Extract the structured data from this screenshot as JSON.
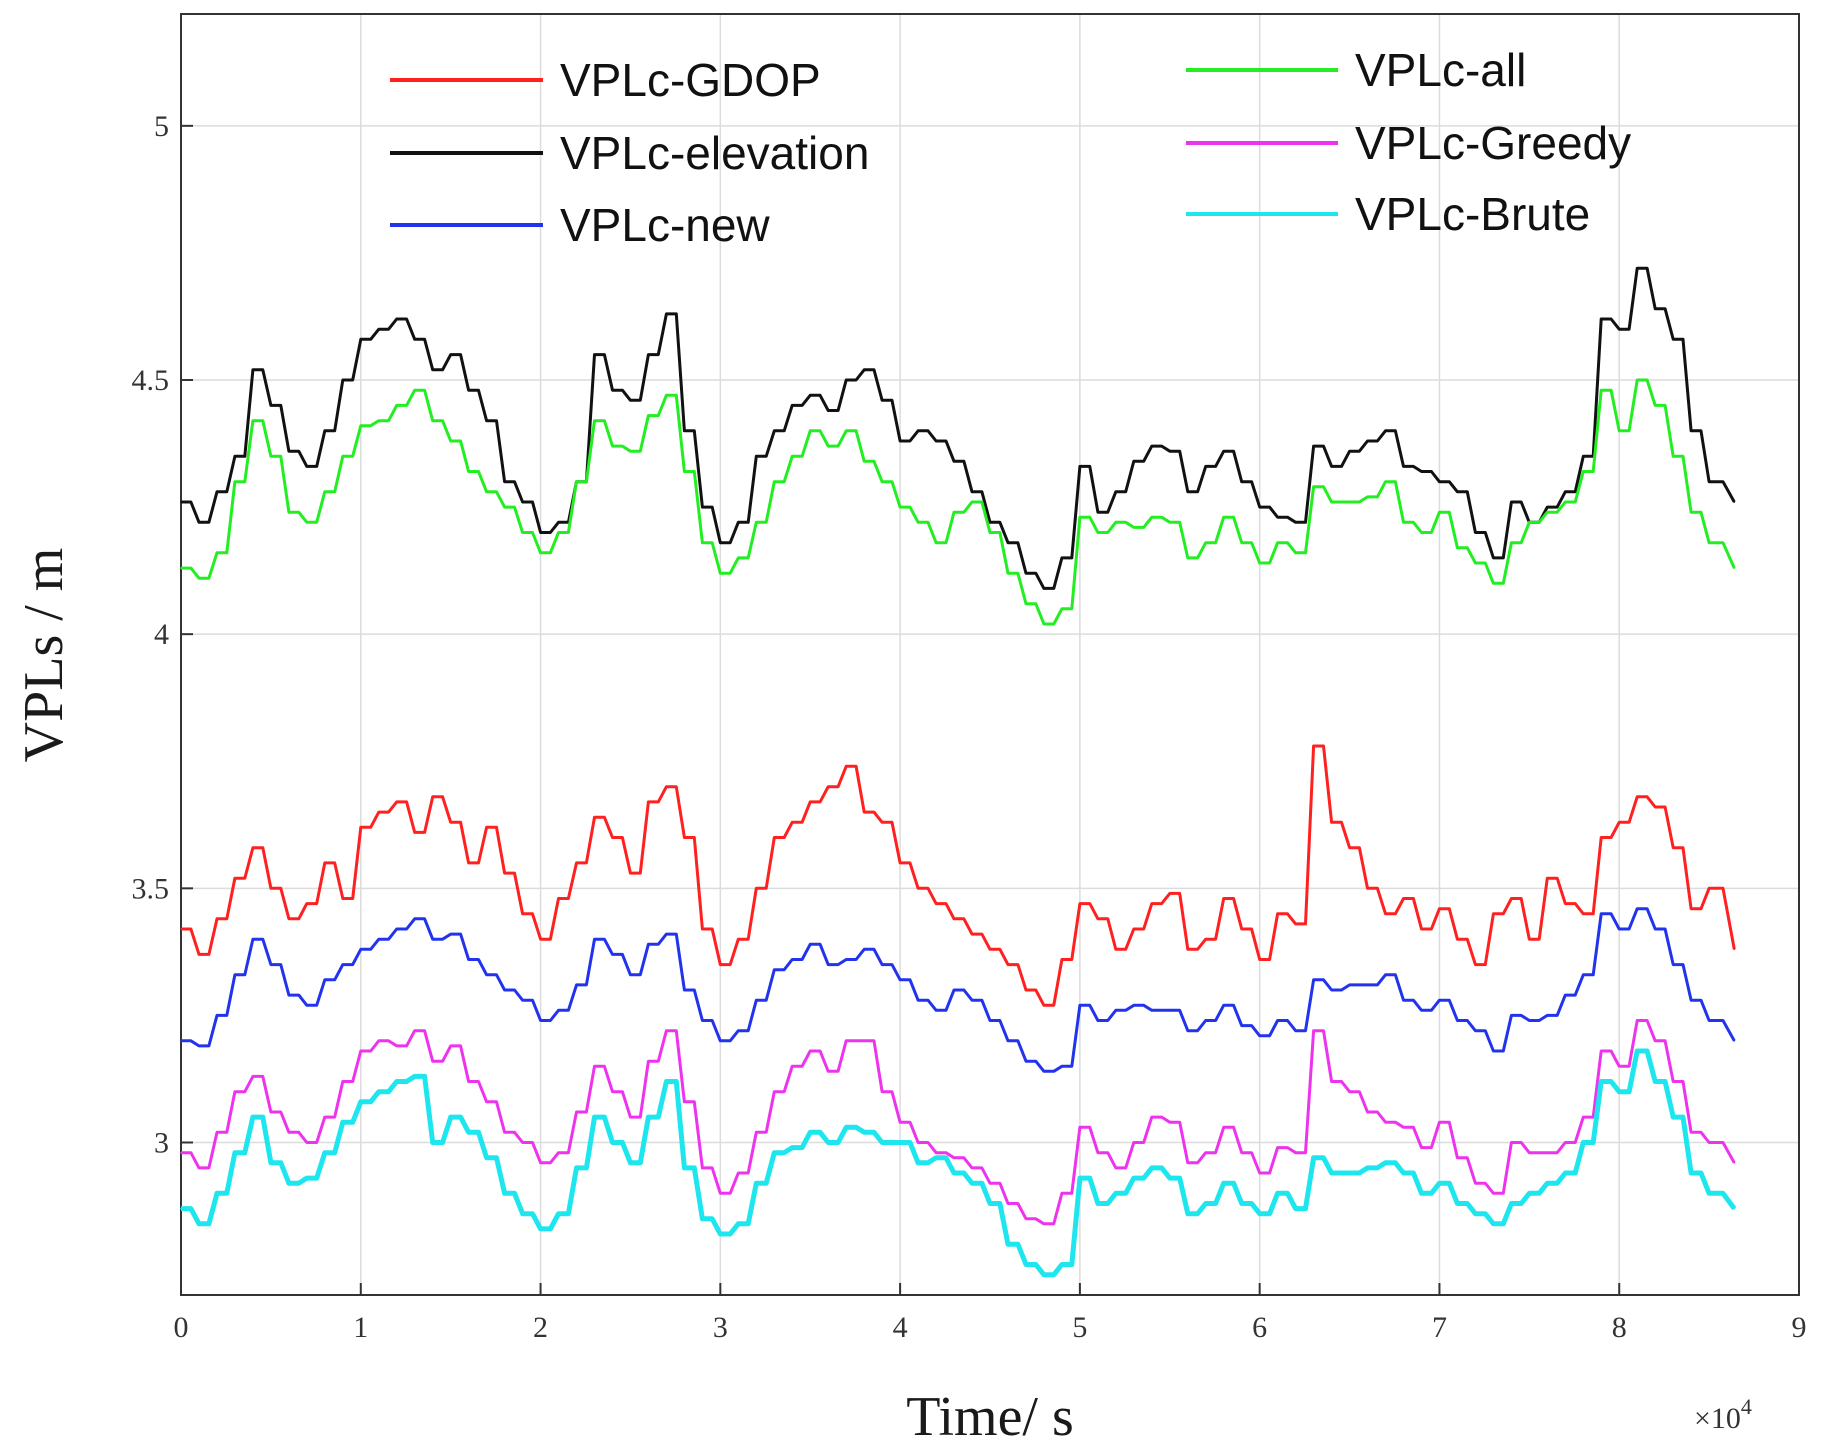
{
  "chart_data": {
    "type": "line",
    "xlabel": "Time/ s",
    "ylabel": "VPLs / m",
    "x_exponent_label": "×10",
    "x_exponent_power": "4",
    "xlim": [
      0,
      9
    ],
    "ylim": [
      2.7,
      5.22
    ],
    "xticks": [
      0,
      1,
      2,
      3,
      4,
      5,
      6,
      7,
      8,
      9
    ],
    "xtick_labels": [
      "0",
      "1",
      "2",
      "3",
      "4",
      "5",
      "6",
      "7",
      "8",
      "9"
    ],
    "yticks": [
      3,
      3.5,
      4,
      4.5,
      5
    ],
    "ytick_labels": [
      "3",
      "3.5",
      "4",
      "4.5",
      "5"
    ],
    "grid": true,
    "legend_position": "top",
    "x": [
      0.0,
      0.1,
      0.2,
      0.3,
      0.4,
      0.5,
      0.6,
      0.7,
      0.8,
      0.9,
      1.0,
      1.1,
      1.2,
      1.3,
      1.4,
      1.5,
      1.6,
      1.7,
      1.8,
      1.9,
      2.0,
      2.1,
      2.2,
      2.3,
      2.4,
      2.5,
      2.6,
      2.7,
      2.8,
      2.9,
      3.0,
      3.1,
      3.2,
      3.3,
      3.4,
      3.5,
      3.6,
      3.7,
      3.8,
      3.9,
      4.0,
      4.1,
      4.2,
      4.3,
      4.4,
      4.5,
      4.6,
      4.7,
      4.8,
      4.9,
      5.0,
      5.1,
      5.2,
      5.3,
      5.4,
      5.5,
      5.6,
      5.7,
      5.8,
      5.9,
      6.0,
      6.1,
      6.2,
      6.3,
      6.4,
      6.5,
      6.6,
      6.7,
      6.8,
      6.9,
      7.0,
      7.1,
      7.2,
      7.3,
      7.4,
      7.5,
      7.6,
      7.7,
      7.8,
      7.9,
      8.0,
      8.1,
      8.2,
      8.3,
      8.4,
      8.5,
      8.64
    ],
    "series": [
      {
        "name": "VPLc-GDOP",
        "color": "#ff2020",
        "legend_column": 0,
        "values": [
          3.42,
          3.37,
          3.44,
          3.52,
          3.58,
          3.5,
          3.44,
          3.47,
          3.55,
          3.48,
          3.62,
          3.65,
          3.67,
          3.61,
          3.68,
          3.63,
          3.55,
          3.62,
          3.53,
          3.45,
          3.4,
          3.48,
          3.55,
          3.64,
          3.6,
          3.53,
          3.67,
          3.7,
          3.6,
          3.42,
          3.35,
          3.4,
          3.5,
          3.6,
          3.63,
          3.67,
          3.7,
          3.74,
          3.65,
          3.63,
          3.55,
          3.5,
          3.47,
          3.44,
          3.41,
          3.38,
          3.35,
          3.3,
          3.27,
          3.36,
          3.47,
          3.44,
          3.38,
          3.42,
          3.47,
          3.49,
          3.38,
          3.4,
          3.48,
          3.42,
          3.36,
          3.45,
          3.43,
          3.78,
          3.63,
          3.58,
          3.5,
          3.45,
          3.48,
          3.42,
          3.46,
          3.4,
          3.35,
          3.45,
          3.48,
          3.4,
          3.52,
          3.47,
          3.45,
          3.6,
          3.63,
          3.68,
          3.66,
          3.58,
          3.46,
          3.5,
          3.38
        ]
      },
      {
        "name": "VPLc-elevation",
        "color": "#111111",
        "legend_column": 0,
        "values": [
          4.26,
          4.22,
          4.28,
          4.35,
          4.52,
          4.45,
          4.36,
          4.33,
          4.4,
          4.5,
          4.58,
          4.6,
          4.62,
          4.58,
          4.52,
          4.55,
          4.48,
          4.42,
          4.3,
          4.26,
          4.2,
          4.22,
          4.3,
          4.55,
          4.48,
          4.46,
          4.55,
          4.63,
          4.4,
          4.25,
          4.18,
          4.22,
          4.35,
          4.4,
          4.45,
          4.47,
          4.44,
          4.5,
          4.52,
          4.46,
          4.38,
          4.4,
          4.38,
          4.34,
          4.28,
          4.22,
          4.18,
          4.12,
          4.09,
          4.15,
          4.33,
          4.24,
          4.28,
          4.34,
          4.37,
          4.36,
          4.28,
          4.33,
          4.36,
          4.3,
          4.25,
          4.23,
          4.22,
          4.37,
          4.33,
          4.36,
          4.38,
          4.4,
          4.33,
          4.32,
          4.3,
          4.28,
          4.2,
          4.15,
          4.26,
          4.22,
          4.25,
          4.28,
          4.35,
          4.62,
          4.6,
          4.72,
          4.64,
          4.58,
          4.4,
          4.3,
          4.26
        ]
      },
      {
        "name": "VPLc-new",
        "color": "#2233ee",
        "legend_column": 0,
        "values": [
          3.2,
          3.19,
          3.25,
          3.33,
          3.4,
          3.35,
          3.29,
          3.27,
          3.32,
          3.35,
          3.38,
          3.4,
          3.42,
          3.44,
          3.4,
          3.41,
          3.36,
          3.33,
          3.3,
          3.28,
          3.24,
          3.26,
          3.31,
          3.4,
          3.37,
          3.33,
          3.39,
          3.41,
          3.3,
          3.24,
          3.2,
          3.22,
          3.28,
          3.34,
          3.36,
          3.39,
          3.35,
          3.36,
          3.38,
          3.35,
          3.32,
          3.28,
          3.26,
          3.3,
          3.28,
          3.24,
          3.2,
          3.16,
          3.14,
          3.15,
          3.27,
          3.24,
          3.26,
          3.27,
          3.26,
          3.26,
          3.22,
          3.24,
          3.27,
          3.23,
          3.21,
          3.24,
          3.22,
          3.32,
          3.3,
          3.31,
          3.31,
          3.33,
          3.28,
          3.26,
          3.28,
          3.24,
          3.22,
          3.18,
          3.25,
          3.24,
          3.25,
          3.29,
          3.33,
          3.45,
          3.42,
          3.46,
          3.42,
          3.35,
          3.28,
          3.24,
          3.2
        ]
      },
      {
        "name": "VPLc-all",
        "color": "#22ee22",
        "legend_column": 1,
        "values": [
          4.13,
          4.11,
          4.16,
          4.3,
          4.42,
          4.35,
          4.24,
          4.22,
          4.28,
          4.35,
          4.41,
          4.42,
          4.45,
          4.48,
          4.42,
          4.38,
          4.32,
          4.28,
          4.25,
          4.2,
          4.16,
          4.2,
          4.3,
          4.42,
          4.37,
          4.36,
          4.43,
          4.47,
          4.32,
          4.18,
          4.12,
          4.15,
          4.22,
          4.3,
          4.35,
          4.4,
          4.37,
          4.4,
          4.34,
          4.3,
          4.25,
          4.22,
          4.18,
          4.24,
          4.26,
          4.2,
          4.12,
          4.06,
          4.02,
          4.05,
          4.23,
          4.2,
          4.22,
          4.21,
          4.23,
          4.22,
          4.15,
          4.18,
          4.23,
          4.18,
          4.14,
          4.18,
          4.16,
          4.29,
          4.26,
          4.26,
          4.27,
          4.3,
          4.22,
          4.2,
          4.24,
          4.17,
          4.14,
          4.1,
          4.18,
          4.22,
          4.24,
          4.26,
          4.32,
          4.48,
          4.4,
          4.5,
          4.45,
          4.35,
          4.24,
          4.18,
          4.13
        ]
      },
      {
        "name": "VPLc-Greedy",
        "color": "#ee33ee",
        "legend_column": 1,
        "values": [
          2.98,
          2.95,
          3.02,
          3.1,
          3.13,
          3.06,
          3.02,
          3.0,
          3.05,
          3.12,
          3.18,
          3.2,
          3.19,
          3.22,
          3.16,
          3.19,
          3.12,
          3.08,
          3.02,
          3.0,
          2.96,
          2.98,
          3.06,
          3.15,
          3.1,
          3.05,
          3.16,
          3.22,
          3.08,
          2.95,
          2.9,
          2.94,
          3.02,
          3.1,
          3.15,
          3.18,
          3.14,
          3.2,
          3.2,
          3.1,
          3.04,
          3.0,
          2.98,
          2.97,
          2.95,
          2.92,
          2.88,
          2.85,
          2.84,
          2.9,
          3.03,
          2.98,
          2.95,
          3.0,
          3.05,
          3.04,
          2.96,
          2.98,
          3.03,
          2.98,
          2.94,
          2.99,
          2.98,
          3.22,
          3.12,
          3.1,
          3.06,
          3.04,
          3.03,
          2.99,
          3.04,
          2.97,
          2.92,
          2.9,
          3.0,
          2.98,
          2.98,
          3.0,
          3.05,
          3.18,
          3.15,
          3.24,
          3.2,
          3.12,
          3.02,
          3.0,
          2.96
        ]
      },
      {
        "name": "VPLc-Brute",
        "color": "#1ee6ee",
        "legend_column": 1,
        "values": [
          2.87,
          2.84,
          2.9,
          2.98,
          3.05,
          2.96,
          2.92,
          2.93,
          2.98,
          3.04,
          3.08,
          3.1,
          3.12,
          3.13,
          3.0,
          3.05,
          3.02,
          2.97,
          2.9,
          2.86,
          2.83,
          2.86,
          2.95,
          3.05,
          3.0,
          2.96,
          3.05,
          3.12,
          2.95,
          2.85,
          2.82,
          2.84,
          2.92,
          2.98,
          2.99,
          3.02,
          3.0,
          3.03,
          3.02,
          3.0,
          3.0,
          2.96,
          2.97,
          2.94,
          2.92,
          2.88,
          2.8,
          2.76,
          2.74,
          2.76,
          2.93,
          2.88,
          2.9,
          2.93,
          2.95,
          2.93,
          2.86,
          2.88,
          2.92,
          2.88,
          2.86,
          2.9,
          2.87,
          2.97,
          2.94,
          2.94,
          2.95,
          2.96,
          2.94,
          2.9,
          2.92,
          2.88,
          2.86,
          2.84,
          2.88,
          2.9,
          2.92,
          2.94,
          3.0,
          3.12,
          3.1,
          3.18,
          3.12,
          3.05,
          2.94,
          2.9,
          2.87
        ]
      }
    ]
  }
}
